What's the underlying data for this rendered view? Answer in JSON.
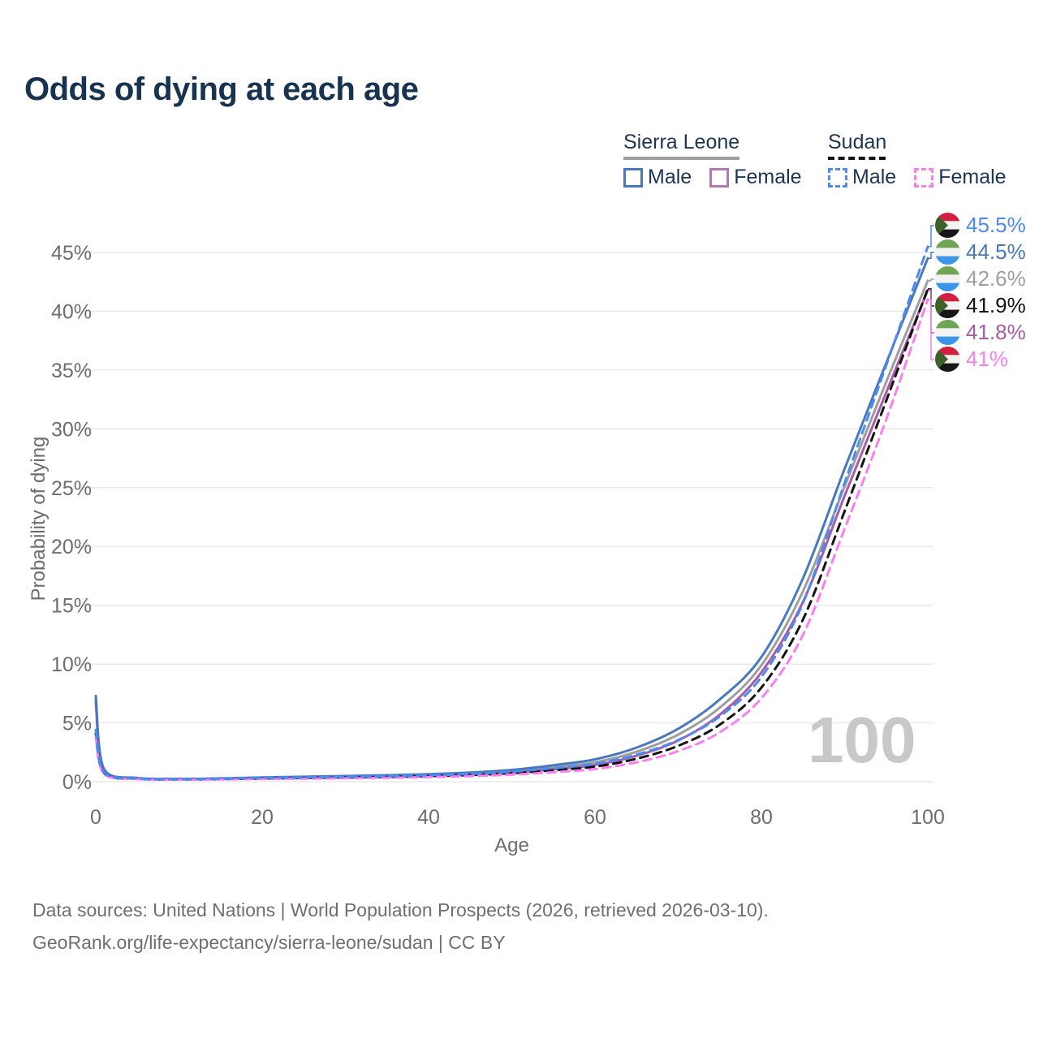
{
  "title": "Odds of dying at each age",
  "legend": {
    "groups": [
      {
        "label": "Sierra Leone",
        "line_style": "solid",
        "underline_color": "#9e9e9e",
        "items": [
          {
            "label": "Male",
            "color": "#4879BE",
            "dash": "solid"
          },
          {
            "label": "Female",
            "color": "#B677B2",
            "dash": "solid"
          }
        ]
      },
      {
        "label": "Sudan",
        "line_style": "dashed",
        "underline_color": "#141414",
        "items": [
          {
            "label": "Male",
            "color": "#4E8BF0",
            "dash": "dashed"
          },
          {
            "label": "Female",
            "color": "#FB7DF1",
            "dash": "dashed"
          }
        ]
      }
    ]
  },
  "chart_data": {
    "type": "line",
    "title": "Odds of dying at each age",
    "xlabel": "Age",
    "ylabel": "Probability of dying",
    "xlim": [
      0,
      100
    ],
    "ylim": [
      0,
      45
    ],
    "x_ticks": [
      0,
      20,
      40,
      60,
      80,
      100
    ],
    "y_ticks": [
      0,
      5,
      10,
      15,
      20,
      25,
      30,
      35,
      40,
      45
    ],
    "y_tick_suffix": "%",
    "grid": "horizontal",
    "legend_position": "top-right",
    "watermark": "100",
    "ages": [
      0,
      1,
      5,
      10,
      15,
      20,
      25,
      30,
      35,
      40,
      45,
      50,
      55,
      60,
      65,
      70,
      75,
      80,
      85,
      90,
      95,
      100
    ],
    "series": [
      {
        "name": "Sierra Leone Both sexes",
        "country": "Sierra Leone",
        "sex": "Both",
        "color": "#9E9E9E",
        "dash": "solid",
        "values": [
          7.0,
          0.98,
          0.3,
          0.22,
          0.25,
          0.31,
          0.36,
          0.41,
          0.47,
          0.56,
          0.68,
          0.88,
          1.22,
          1.65,
          2.55,
          4.0,
          6.3,
          9.9,
          16.2,
          25.1,
          34.0,
          42.6
        ]
      },
      {
        "name": "Sierra Leone Female",
        "country": "Sierra Leone",
        "sex": "Female",
        "color": "#A85CA5",
        "dash": "solid",
        "values": [
          6.7,
          0.92,
          0.28,
          0.2,
          0.22,
          0.27,
          0.31,
          0.35,
          0.41,
          0.49,
          0.6,
          0.77,
          1.06,
          1.42,
          2.2,
          3.5,
          5.7,
          9.3,
          15.3,
          24.3,
          33.1,
          41.8
        ]
      },
      {
        "name": "Sierra Leone Male",
        "country": "Sierra Leone",
        "sex": "Male",
        "color": "#4879BE",
        "dash": "solid",
        "values": [
          7.3,
          1.05,
          0.32,
          0.24,
          0.28,
          0.36,
          0.42,
          0.48,
          0.55,
          0.64,
          0.78,
          1.0,
          1.4,
          1.9,
          2.9,
          4.5,
          7.0,
          10.6,
          17.3,
          26.6,
          35.6,
          44.5
        ]
      },
      {
        "name": "Sudan Both sexes",
        "country": "Sudan",
        "sex": "Both",
        "color": "#141414",
        "dash": "dashed",
        "values": [
          4.1,
          0.72,
          0.24,
          0.19,
          0.22,
          0.27,
          0.31,
          0.35,
          0.4,
          0.47,
          0.56,
          0.72,
          0.97,
          1.28,
          1.95,
          3.05,
          4.85,
          8.0,
          13.8,
          23.0,
          32.4,
          41.9
        ]
      },
      {
        "name": "Sudan Female",
        "country": "Sudan",
        "sex": "Female",
        "color": "#FB7DF1",
        "dash": "dashed",
        "values": [
          3.8,
          0.66,
          0.22,
          0.17,
          0.19,
          0.23,
          0.26,
          0.29,
          0.33,
          0.39,
          0.47,
          0.6,
          0.81,
          1.08,
          1.65,
          2.6,
          4.2,
          7.1,
          12.5,
          21.5,
          30.8,
          41.0
        ]
      },
      {
        "name": "Sudan Male",
        "country": "Sudan",
        "sex": "Male",
        "color": "#4E8BF0",
        "dash": "dashed",
        "values": [
          4.4,
          0.78,
          0.26,
          0.21,
          0.25,
          0.31,
          0.36,
          0.41,
          0.47,
          0.55,
          0.66,
          0.85,
          1.15,
          1.52,
          2.3,
          3.55,
          5.55,
          8.9,
          15.2,
          25.4,
          35.4,
          45.5
        ]
      }
    ],
    "end_labels": [
      {
        "text": "45.5%",
        "color": "#4E8BF0",
        "flag": "sudan",
        "series": "Sudan Male"
      },
      {
        "text": "44.5%",
        "color": "#4879BE",
        "flag": "sierra-leone",
        "series": "Sierra Leone Male"
      },
      {
        "text": "42.6%",
        "color": "#9E9E9E",
        "flag": "sierra-leone",
        "series": "Sierra Leone Both sexes"
      },
      {
        "text": "41.9%",
        "color": "#141414",
        "flag": "sudan",
        "series": "Sudan Both sexes"
      },
      {
        "text": "41.8%",
        "color": "#A85CA5",
        "flag": "sierra-leone",
        "series": "Sierra Leone Female"
      },
      {
        "text": "41%",
        "color": "#FB7DF1",
        "flag": "sudan",
        "series": "Sudan Female"
      }
    ]
  },
  "flags": {
    "sudan": {
      "bands": [
        "#D32041",
        "#F2F2F2",
        "#161616"
      ],
      "triangle": "#3E6129"
    },
    "sierra-leone": {
      "bands": [
        "#6FA653",
        "#F2F2F2",
        "#3C96E8"
      ]
    }
  },
  "footer": {
    "line1": "Data sources: United Nations | World Population Prospects (2026, retrieved 2026-03-10).",
    "line2": "GeoRank.org/life-expectancy/sierra-leone/sudan | CC BY"
  }
}
